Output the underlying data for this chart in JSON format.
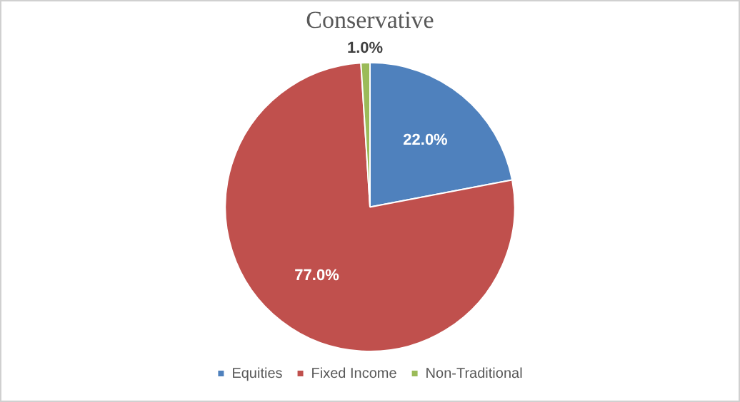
{
  "chart_data": {
    "type": "pie",
    "title": "Conservative",
    "categories": [
      "Equities",
      "Fixed Income",
      "Non-Traditional"
    ],
    "values": [
      22,
      77,
      1
    ],
    "colors": [
      "#4f81bd",
      "#c0504d",
      "#9bbb59"
    ],
    "value_labels": [
      "22.0%",
      "77.0%",
      "1.0%"
    ],
    "legend": "bottom"
  }
}
